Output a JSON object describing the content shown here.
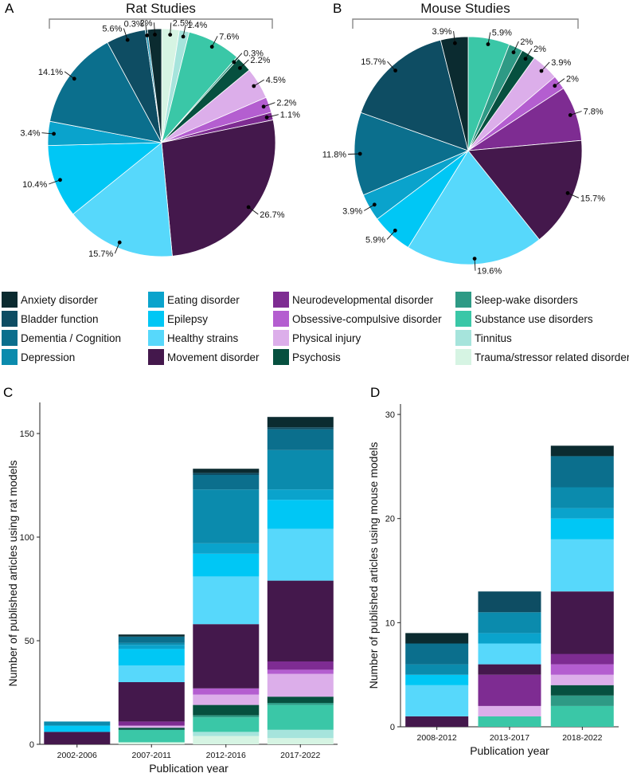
{
  "panel_letters": {
    "a": "A",
    "b": "B",
    "c": "C",
    "d": "D"
  },
  "categories": [
    {
      "name": "Anxiety disorder",
      "color": "#0b2b30"
    },
    {
      "name": "Bladder function",
      "color": "#0e4d63"
    },
    {
      "name": "Dementia / Cognition",
      "color": "#0b6f8d"
    },
    {
      "name": "Depression",
      "color": "#0b8bad"
    },
    {
      "name": "Eating disorder",
      "color": "#0aa3cc"
    },
    {
      "name": "Epilepsy",
      "color": "#00c7f5"
    },
    {
      "name": "Healthy strains",
      "color": "#57d8fb"
    },
    {
      "name": "Movement disorder",
      "color": "#44184c"
    },
    {
      "name": "Neurodevelopmental disorder",
      "color": "#7e2c92"
    },
    {
      "name": "Obsessive-compulsive disorder",
      "color": "#b45ed0"
    },
    {
      "name": "Physical injury",
      "color": "#dcaeea"
    },
    {
      "name": "Psychosis",
      "color": "#06503f"
    },
    {
      "name": "Sleep-wake disorders",
      "color": "#2e9a85"
    },
    {
      "name": "Substance use disorders",
      "color": "#3ac7a7"
    },
    {
      "name": "Tinnitus",
      "color": "#a6e4dc"
    },
    {
      "name": "Trauma/stressor related disorders",
      "color": "#d6f4e3"
    }
  ],
  "chart_data": [
    {
      "type": "pie",
      "panel": "A",
      "title": "Rat Studies",
      "start": "top, clockwise",
      "slices": [
        {
          "category": "Trauma/stressor related disorders",
          "value": 2.5,
          "label": "2.5%"
        },
        {
          "category": "Tinnitus",
          "value": 1.4,
          "label": "1.4%"
        },
        {
          "category": "Substance use disorders",
          "value": 7.6,
          "label": "7.6%"
        },
        {
          "category": "Sleep-wake disorders",
          "value": 0.3,
          "label": "0.3%"
        },
        {
          "category": "Psychosis",
          "value": 2.2,
          "label": "2.2%"
        },
        {
          "category": "Physical injury",
          "value": 4.5,
          "label": "4.5%"
        },
        {
          "category": "Obsessive-compulsive disorder",
          "value": 2.2,
          "label": "2.2%"
        },
        {
          "category": "Neurodevelopmental disorder",
          "value": 1.1,
          "label": "1.1%"
        },
        {
          "category": "Movement disorder",
          "value": 26.7,
          "label": "26.7%"
        },
        {
          "category": "Healthy strains",
          "value": 15.7,
          "label": "15.7%"
        },
        {
          "category": "Epilepsy",
          "value": 10.4,
          "label": "10.4%"
        },
        {
          "category": "Eating disorder",
          "value": 3.4,
          "label": "3.4%"
        },
        {
          "category": "Dementia / Cognition",
          "value": 14.1,
          "label": "14.1%"
        },
        {
          "category": "Bladder function",
          "value": 5.6,
          "label": "5.6%"
        },
        {
          "category": "Depression",
          "value": 0.3,
          "label": "0.3%"
        },
        {
          "category": "Anxiety disorder",
          "value": 2.0,
          "label": "2%"
        }
      ]
    },
    {
      "type": "pie",
      "panel": "B",
      "title": "Mouse Studies",
      "start": "top, clockwise",
      "slices": [
        {
          "category": "Substance use disorders",
          "value": 5.9,
          "label": "5.9%"
        },
        {
          "category": "Sleep-wake disorders",
          "value": 2.0,
          "label": "2%"
        },
        {
          "category": "Psychosis",
          "value": 2.0,
          "label": "2%"
        },
        {
          "category": "Physical injury",
          "value": 3.9,
          "label": "3.9%"
        },
        {
          "category": "Obsessive-compulsive disorder",
          "value": 2.0,
          "label": "2%"
        },
        {
          "category": "Neurodevelopmental disorder",
          "value": 7.8,
          "label": "7.8%"
        },
        {
          "category": "Movement disorder",
          "value": 15.7,
          "label": "15.7%"
        },
        {
          "category": "Healthy strains",
          "value": 19.6,
          "label": "19.6%"
        },
        {
          "category": "Epilepsy",
          "value": 5.9,
          "label": "5.9%"
        },
        {
          "category": "Eating disorder",
          "value": 3.9,
          "label": "3.9%"
        },
        {
          "category": "Dementia / Cognition",
          "value": 11.8,
          "label": "11.8%"
        },
        {
          "category": "Bladder function",
          "value": 15.7,
          "label": "15.7%"
        },
        {
          "category": "Anxiety disorder",
          "value": 3.9,
          "label": "3.9%"
        }
      ]
    },
    {
      "type": "bar",
      "stacked": true,
      "panel": "C",
      "xlabel": "Publication year",
      "ylabel": "Number of published articles using rat models",
      "ylim": [
        0,
        165
      ],
      "yticks": [
        0,
        50,
        100,
        150
      ],
      "stack_order": "bottom to top",
      "categories": [
        "2002-2006",
        "2007-2011",
        "2012-2016",
        "2017-2022"
      ],
      "series": [
        {
          "name": "Trauma/stressor related disorders",
          "values": [
            0,
            1,
            4,
            3
          ]
        },
        {
          "name": "Tinnitus",
          "values": [
            0,
            0,
            2,
            4
          ]
        },
        {
          "name": "Substance use disorders",
          "values": [
            0,
            6,
            7,
            12
          ]
        },
        {
          "name": "Sleep-wake disorders",
          "values": [
            0,
            0,
            1,
            1
          ]
        },
        {
          "name": "Psychosis",
          "values": [
            0,
            1,
            5,
            3
          ]
        },
        {
          "name": "Physical injury",
          "values": [
            0,
            1,
            5,
            11
          ]
        },
        {
          "name": "Obsessive-compulsive disorder",
          "values": [
            0,
            0,
            3,
            2
          ]
        },
        {
          "name": "Neurodevelopmental disorder",
          "values": [
            0,
            2,
            0,
            4
          ]
        },
        {
          "name": "Movement disorder",
          "values": [
            6,
            19,
            31,
            39
          ]
        },
        {
          "name": "Healthy strains",
          "values": [
            0,
            8,
            23,
            25
          ]
        },
        {
          "name": "Epilepsy",
          "values": [
            3,
            8,
            11,
            14
          ]
        },
        {
          "name": "Eating disorder",
          "values": [
            0,
            2,
            5,
            5
          ]
        },
        {
          "name": "Depression",
          "values": [
            2,
            1,
            26,
            19
          ]
        },
        {
          "name": "Dementia / Cognition",
          "values": [
            0,
            3,
            7,
            10
          ]
        },
        {
          "name": "Bladder function",
          "values": [
            0,
            0,
            1,
            1
          ]
        },
        {
          "name": "Anxiety disorder",
          "values": [
            0,
            1,
            2,
            5
          ]
        }
      ]
    },
    {
      "type": "bar",
      "stacked": true,
      "panel": "D",
      "xlabel": "Publication year",
      "ylabel": "Number of published articles using mouse models",
      "ylim": [
        0,
        31
      ],
      "yticks": [
        0,
        10,
        20,
        30
      ],
      "stack_order": "bottom to top",
      "categories": [
        "2008-2012",
        "2013-2017",
        "2018-2022"
      ],
      "series": [
        {
          "name": "Substance use disorders",
          "values": [
            0,
            1,
            2
          ]
        },
        {
          "name": "Sleep-wake disorders",
          "values": [
            0,
            0,
            1
          ]
        },
        {
          "name": "Psychosis",
          "values": [
            0,
            0,
            1
          ]
        },
        {
          "name": "Physical injury",
          "values": [
            0,
            1,
            1
          ]
        },
        {
          "name": "Obsessive-compulsive disorder",
          "values": [
            0,
            0,
            1
          ]
        },
        {
          "name": "Neurodevelopmental disorder",
          "values": [
            0,
            3,
            1
          ]
        },
        {
          "name": "Movement disorder",
          "values": [
            1,
            1,
            6
          ]
        },
        {
          "name": "Healthy strains",
          "values": [
            3,
            2,
            5
          ]
        },
        {
          "name": "Epilepsy",
          "values": [
            1,
            0,
            2
          ]
        },
        {
          "name": "Eating disorder",
          "values": [
            0,
            1,
            1
          ]
        },
        {
          "name": "Depression",
          "values": [
            1,
            2,
            2
          ]
        },
        {
          "name": "Dementia / Cognition",
          "values": [
            2,
            0,
            3
          ]
        },
        {
          "name": "Bladder function",
          "values": [
            0,
            2,
            0
          ]
        },
        {
          "name": "Anxiety disorder",
          "values": [
            1,
            0,
            1
          ]
        }
      ]
    }
  ]
}
